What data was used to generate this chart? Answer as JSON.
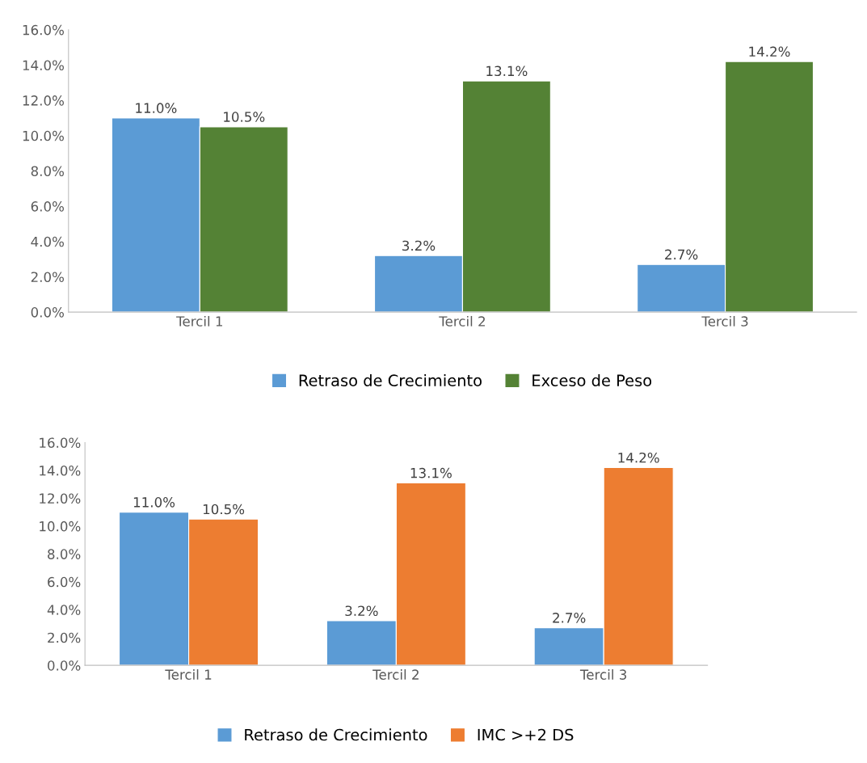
{
  "chart_data": [
    {
      "type": "bar",
      "categories": [
        "Tercil 1",
        "Tercil 2",
        "Tercil 3"
      ],
      "series": [
        {
          "name": "Retraso de Crecimiento",
          "color": "#5b9bd5",
          "values": [
            11.0,
            3.2,
            2.7
          ],
          "value_labels": [
            "11.0%",
            "3.2%",
            "2.7%"
          ]
        },
        {
          "name": "Exceso de Peso",
          "color": "#548235",
          "values": [
            10.5,
            13.1,
            14.2
          ],
          "value_labels": [
            "10.5%",
            "13.1%",
            "14.2%"
          ]
        }
      ],
      "ylim": [
        0,
        16
      ],
      "yticks": [
        {
          "value": 0,
          "label": "0.0%"
        },
        {
          "value": 2,
          "label": "2.0%"
        },
        {
          "value": 4,
          "label": "4.0%"
        },
        {
          "value": 6,
          "label": "6.0%"
        },
        {
          "value": 8,
          "label": "8.0%"
        },
        {
          "value": 10,
          "label": "10.0%"
        },
        {
          "value": 12,
          "label": "12.0%"
        },
        {
          "value": 14,
          "label": "14.0%"
        },
        {
          "value": 16,
          "label": "16.0%"
        }
      ],
      "grid": false,
      "legend": "bottom"
    },
    {
      "type": "bar",
      "categories": [
        "Tercil 1",
        "Tercil 2",
        "Tercil 3"
      ],
      "series": [
        {
          "name": "Retraso de Crecimiento",
          "color": "#5b9bd5",
          "values": [
            11.0,
            3.2,
            2.7
          ],
          "value_labels": [
            "11.0%",
            "3.2%",
            "2.7%"
          ]
        },
        {
          "name": "IMC >+2 DS",
          "color": "#ed7d31",
          "values": [
            10.5,
            13.1,
            14.2
          ],
          "value_labels": [
            "10.5%",
            "13.1%",
            "14.2%"
          ]
        }
      ],
      "ylim": [
        0,
        16
      ],
      "yticks": [
        {
          "value": 0,
          "label": "0.0%"
        },
        {
          "value": 2,
          "label": "2.0%"
        },
        {
          "value": 4,
          "label": "4.0%"
        },
        {
          "value": 6,
          "label": "6.0%"
        },
        {
          "value": 8,
          "label": "8.0%"
        },
        {
          "value": 10,
          "label": "10.0%"
        },
        {
          "value": 12,
          "label": "12.0%"
        },
        {
          "value": 14,
          "label": "14.0%"
        },
        {
          "value": 16,
          "label": "16.0%"
        }
      ],
      "grid": false,
      "legend": "bottom"
    }
  ]
}
